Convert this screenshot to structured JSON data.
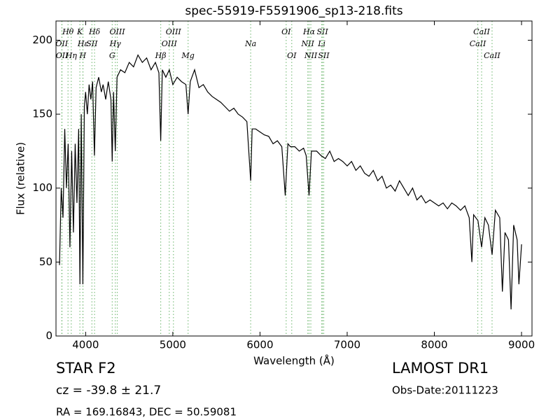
{
  "chart_data": {
    "type": "line",
    "title": "spec-55919-F5591906_sp13-218.fits",
    "x_label": "Wavelength (Å)",
    "y_label": "Flux (relative)",
    "xlim": [
      3660,
      9120
    ],
    "ylim": [
      0,
      213
    ],
    "xticks": [
      4000,
      5000,
      6000,
      7000,
      8000,
      9000
    ],
    "yticks": [
      0,
      50,
      100,
      150,
      200
    ],
    "series": [
      {
        "color": "#000000",
        "x": [
          3700,
          3720,
          3740,
          3760,
          3780,
          3800,
          3820,
          3840,
          3860,
          3880,
          3900,
          3920,
          3935,
          3950,
          3968,
          3985,
          4000,
          4020,
          4040,
          4060,
          4080,
          4101,
          4120,
          4150,
          4180,
          4200,
          4230,
          4260,
          4290,
          4305,
          4320,
          4340,
          4360,
          4400,
          4450,
          4500,
          4550,
          4600,
          4650,
          4700,
          4750,
          4800,
          4840,
          4861,
          4880,
          4920,
          4960,
          5000,
          5050,
          5100,
          5150,
          5175,
          5200,
          5250,
          5300,
          5350,
          5400,
          5450,
          5500,
          5550,
          5600,
          5650,
          5700,
          5750,
          5800,
          5850,
          5893,
          5910,
          5950,
          6000,
          6050,
          6100,
          6150,
          6200,
          6250,
          6290,
          6320,
          6350,
          6400,
          6450,
          6500,
          6530,
          6563,
          6590,
          6650,
          6700,
          6750,
          6800,
          6850,
          6900,
          6950,
          7000,
          7050,
          7100,
          7150,
          7200,
          7250,
          7300,
          7350,
          7400,
          7450,
          7500,
          7550,
          7600,
          7650,
          7700,
          7750,
          7800,
          7850,
          7900,
          7950,
          8000,
          8050,
          8100,
          8150,
          8200,
          8250,
          8300,
          8350,
          8400,
          8430,
          8450,
          8500,
          8542,
          8580,
          8620,
          8662,
          8700,
          8750,
          8780,
          8810,
          8850,
          8880,
          8910,
          8950,
          8970,
          9000
        ],
        "values": [
          48,
          100,
          80,
          140,
          100,
          130,
          60,
          125,
          70,
          130,
          90,
          140,
          35,
          150,
          35,
          155,
          165,
          150,
          170,
          160,
          172,
          122,
          168,
          175,
          165,
          170,
          160,
          172,
          160,
          118,
          165,
          125,
          175,
          180,
          178,
          185,
          182,
          190,
          185,
          188,
          180,
          185,
          178,
          132,
          180,
          175,
          180,
          170,
          175,
          172,
          170,
          150,
          172,
          180,
          168,
          170,
          165,
          162,
          160,
          158,
          155,
          152,
          154,
          150,
          148,
          145,
          105,
          140,
          140,
          138,
          136,
          135,
          130,
          132,
          128,
          95,
          130,
          128,
          128,
          125,
          127,
          122,
          95,
          125,
          125,
          122,
          120,
          125,
          118,
          120,
          118,
          115,
          118,
          112,
          115,
          110,
          108,
          112,
          105,
          108,
          100,
          102,
          98,
          105,
          100,
          95,
          100,
          92,
          95,
          90,
          92,
          90,
          88,
          90,
          86,
          90,
          88,
          85,
          88,
          80,
          50,
          82,
          78,
          60,
          80,
          75,
          55,
          85,
          80,
          30,
          70,
          65,
          18,
          75,
          65,
          35,
          62
        ]
      }
    ],
    "lines": [
      {
        "label": "OII",
        "wavelength": 3726
      },
      {
        "label": "OII",
        "wavelength": 3729
      },
      {
        "label": "Hθ",
        "wavelength": 3798
      },
      {
        "label": "Hη",
        "wavelength": 3835
      },
      {
        "label": "K",
        "wavelength": 3934
      },
      {
        "label": "H",
        "wavelength": 3968
      },
      {
        "label": "Hε",
        "wavelength": 3970
      },
      {
        "label": "SII",
        "wavelength": 4072
      },
      {
        "label": "Hδ",
        "wavelength": 4102
      },
      {
        "label": "G",
        "wavelength": 4305
      },
      {
        "label": "Hγ",
        "wavelength": 4340
      },
      {
        "label": "OIII",
        "wavelength": 4363
      },
      {
        "label": "Hβ",
        "wavelength": 4861
      },
      {
        "label": "OIII",
        "wavelength": 4959
      },
      {
        "label": "OIII",
        "wavelength": 5007
      },
      {
        "label": "Mg",
        "wavelength": 5175
      },
      {
        "label": "Na",
        "wavelength": 5893
      },
      {
        "label": "OI",
        "wavelength": 6300
      },
      {
        "label": "OI",
        "wavelength": 6364
      },
      {
        "label": "NII",
        "wavelength": 6548
      },
      {
        "label": "Hα",
        "wavelength": 6563
      },
      {
        "label": "NII",
        "wavelength": 6583
      },
      {
        "label": "Li",
        "wavelength": 6708
      },
      {
        "label": "SII",
        "wavelength": 6716
      },
      {
        "label": "SII",
        "wavelength": 6731
      },
      {
        "label": "CaII",
        "wavelength": 8498
      },
      {
        "label": "CaII",
        "wavelength": 8542
      },
      {
        "label": "CaII",
        "wavelength": 8662
      }
    ],
    "line_color": "#7fbf7f",
    "annotations": [
      "STAR   F2",
      "cz = -39.8 ± 21.7",
      "RA = 169.16843, DEC = 50.59081",
      "LAMOST DR1",
      "Obs-Date:20111223"
    ]
  }
}
